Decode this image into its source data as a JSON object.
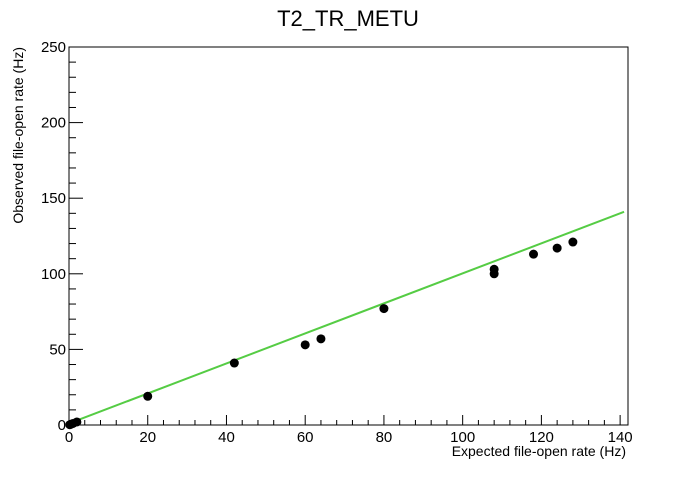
{
  "chart_data": {
    "type": "scatter",
    "title": "T2_TR_METU",
    "xlabel": "Expected file-open rate (Hz)",
    "ylabel": "Observed file-open rate (Hz)",
    "xlim": [
      0,
      142
    ],
    "ylim": [
      0,
      250
    ],
    "x_ticks": [
      0,
      20,
      40,
      60,
      80,
      100,
      120,
      140
    ],
    "y_ticks": [
      0,
      50,
      100,
      150,
      200,
      250
    ],
    "grid": false,
    "legend": "none",
    "series": [
      {
        "kind": "markers",
        "color": "#000000",
        "x": [
          0.2,
          0.5,
          1,
          2,
          20,
          42,
          60,
          64,
          80,
          108,
          108,
          118,
          124,
          128
        ],
        "y": [
          0.2,
          0.5,
          1,
          2,
          19,
          41,
          53,
          57,
          77,
          100,
          103,
          113,
          117,
          121
        ]
      },
      {
        "kind": "fit-line",
        "color": "#55cc44",
        "x": [
          0,
          141
        ],
        "y": [
          1,
          141
        ]
      }
    ]
  }
}
